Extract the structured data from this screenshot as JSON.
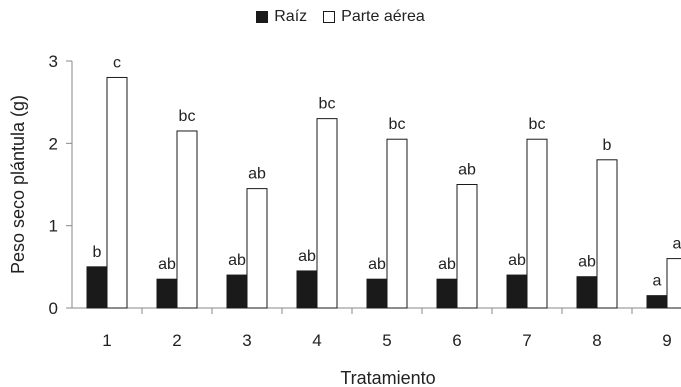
{
  "chart_data": {
    "type": "bar",
    "title": "",
    "xlabel": "Tratamiento",
    "ylabel": "Peso seco plántula (g)",
    "categories": [
      "1",
      "2",
      "3",
      "4",
      "5",
      "6",
      "7",
      "8",
      "9"
    ],
    "ylim": [
      0,
      3
    ],
    "yticks": [
      "0",
      "1",
      "2",
      "3"
    ],
    "grid": false,
    "legend_position": "top-center",
    "series": [
      {
        "name": "Raíz",
        "color": "#1a1a1a",
        "fill": "#1a1a1a",
        "values": [
          0.5,
          0.35,
          0.4,
          0.45,
          0.35,
          0.35,
          0.4,
          0.38,
          0.15
        ],
        "labels": [
          "b",
          "ab",
          "ab",
          "ab",
          "ab",
          "ab",
          "ab",
          "ab",
          "a"
        ]
      },
      {
        "name": "Parte aérea",
        "color": "#1a1a1a",
        "fill": "#ffffff",
        "values": [
          2.8,
          2.15,
          1.45,
          2.3,
          2.05,
          1.5,
          2.05,
          1.8,
          0.6
        ],
        "labels": [
          "c",
          "bc",
          "ab",
          "bc",
          "bc",
          "ab",
          "bc",
          "b",
          "a"
        ]
      }
    ]
  }
}
